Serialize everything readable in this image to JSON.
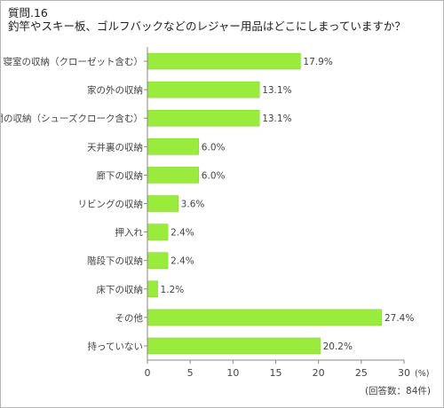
{
  "title": {
    "line1": "質問.16",
    "line2": "釣竿やスキー板、ゴルフバックなどのレジャー用品はどこにしまっていますか？"
  },
  "colors": {
    "bar": "#99ec3c",
    "bar_stroke": "#7fcf2a",
    "axis": "#888888",
    "text": "#444444",
    "frame": "#b5b5b5"
  },
  "chart_data": {
    "type": "bar",
    "orientation": "horizontal",
    "categories": [
      "寝室の収納（クローゼット含む）",
      "家の外の収納",
      "玄関の収納（シューズクローク含む）",
      "天井裏の収納",
      "廊下の収納",
      "リビングの収納",
      "押入れ",
      "階段下の収納",
      "床下の収納",
      "その他",
      "持っていない"
    ],
    "values": [
      17.9,
      13.1,
      13.1,
      6.0,
      6.0,
      3.6,
      2.4,
      2.4,
      1.2,
      27.4,
      20.2
    ],
    "value_labels": [
      "17.9%",
      "13.1%",
      "13.1%",
      "6.0%",
      "6.0%",
      "3.6%",
      "2.4%",
      "2.4%",
      "1.2%",
      "27.4%",
      "20.2%"
    ],
    "xlim": [
      0,
      30
    ],
    "xticks": [
      0,
      5,
      10,
      15,
      20,
      25,
      30
    ],
    "xtick_labels": [
      "0",
      "5",
      "10",
      "15",
      "20",
      "25",
      "30"
    ],
    "unit_label": "(%)",
    "note": "(回答数：84件)",
    "grid": false,
    "legend": "none"
  }
}
